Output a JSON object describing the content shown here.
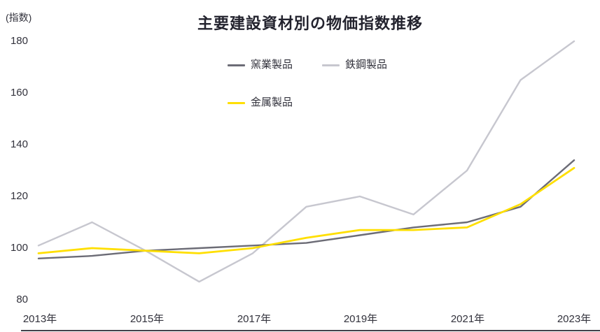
{
  "chart_data": {
    "type": "line",
    "title": "主要建設資材別の物価指数推移",
    "ylabel": "(指数)",
    "xlabel": "",
    "x": [
      "2013年",
      "2014年",
      "2015年",
      "2016年",
      "2017年",
      "2018年",
      "2019年",
      "2020年",
      "2021年",
      "2022年",
      "2023年"
    ],
    "x_tick_labels": [
      "2013年",
      "2015年",
      "2017年",
      "2019年",
      "2021年",
      "2023年"
    ],
    "y_ticks": [
      180,
      160,
      140,
      120,
      100,
      80
    ],
    "ylim": [
      80,
      180
    ],
    "grid": false,
    "legend_position": "top-center",
    "series": [
      {
        "name": "窯業製品",
        "color": "#6c6c76",
        "stroke_width": 2.4,
        "values": [
          96,
          97,
          99,
          100,
          101,
          102,
          105,
          108,
          110,
          116,
          134
        ]
      },
      {
        "name": "鉄鋼製品",
        "color": "#c7c7cf",
        "stroke_width": 2.4,
        "values": [
          101,
          110,
          99,
          87,
          98,
          116,
          120,
          113,
          130,
          165,
          180
        ]
      },
      {
        "name": "金属製品",
        "color": "#ffdf00",
        "stroke_width": 2.8,
        "values": [
          98,
          100,
          99,
          98,
          100,
          104,
          107,
          107,
          108,
          117,
          131
        ]
      }
    ]
  }
}
